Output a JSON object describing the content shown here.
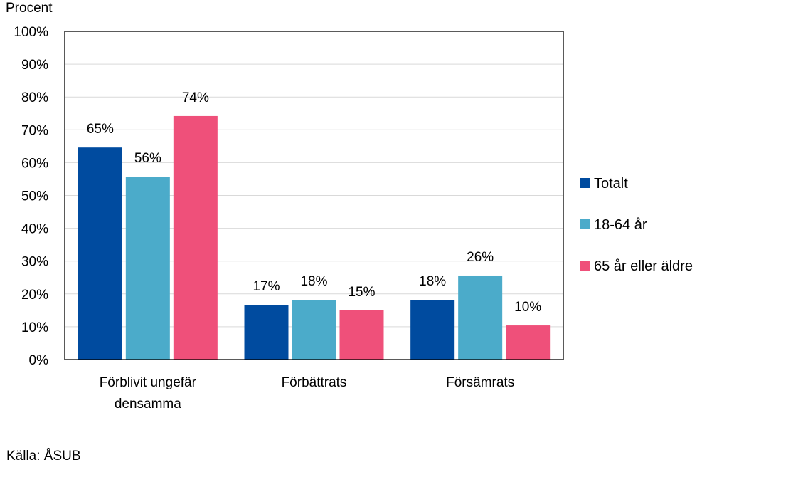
{
  "chart_data": {
    "type": "bar",
    "ylabel": "Procent",
    "ylim": [
      0,
      100
    ],
    "yticks": [
      "0%",
      "10%",
      "20%",
      "30%",
      "40%",
      "50%",
      "60%",
      "70%",
      "80%",
      "90%",
      "100%"
    ],
    "grid": true,
    "legend_position": "right",
    "categories": [
      [
        "Förblivit ungefär",
        "densamma"
      ],
      [
        "Förbättrats"
      ],
      [
        "Försämrats"
      ]
    ],
    "series": [
      {
        "name": "Totalt",
        "color": "#004b9f",
        "values": [
          64.6,
          16.7,
          18.2
        ],
        "labels": [
          "65%",
          "17%",
          "18%"
        ]
      },
      {
        "name": "18-64 år",
        "color": "#4babca",
        "values": [
          55.7,
          18.2,
          25.6
        ],
        "labels": [
          "56%",
          "18%",
          "26%"
        ]
      },
      {
        "name": "65 år eller äldre",
        "color": "#ef507a",
        "values": [
          74.2,
          15.0,
          10.4
        ],
        "labels": [
          "74%",
          "15%",
          "10%"
        ]
      }
    ]
  },
  "source": "Källa: ÅSUB"
}
